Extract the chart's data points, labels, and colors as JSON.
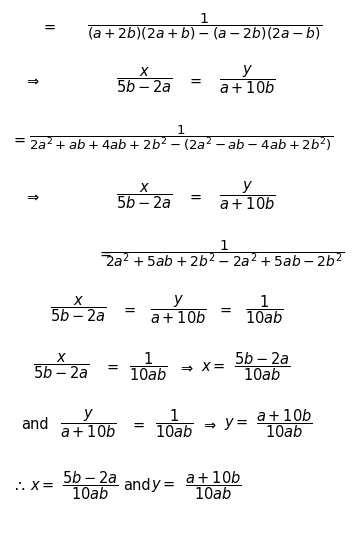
{
  "background_color": "#ffffff",
  "figsize": [
    3.64,
    5.39
  ],
  "dpi": 100,
  "font_size": 10.5
}
